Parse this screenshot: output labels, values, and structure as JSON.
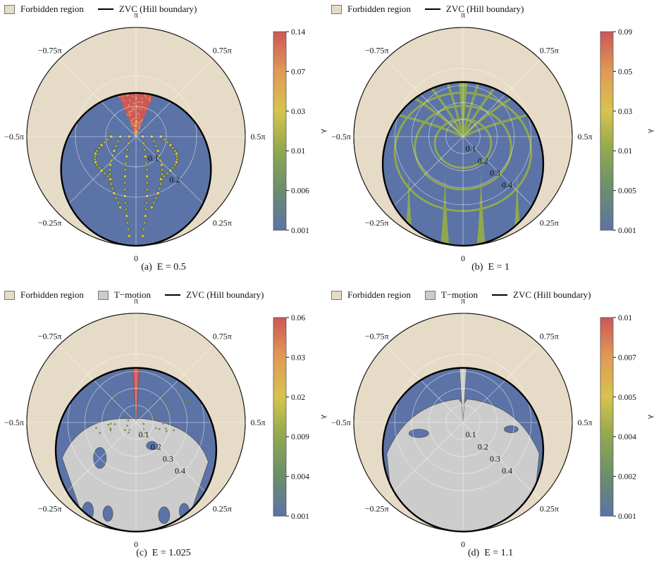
{
  "colors": {
    "forbidden": "#e6dbc6",
    "t_motion": "#cccccc",
    "zvc": "#000000",
    "field": "#5b73a6",
    "gradient": [
      "#5b73a6",
      "#6a8e6d",
      "#8fa84f",
      "#d6c44d",
      "#e09a57",
      "#cc5757"
    ]
  },
  "panels": [
    {
      "legend": [
        {
          "kind": "swatch",
          "color_key": "forbidden",
          "label": "Forbidden region"
        },
        {
          "kind": "line",
          "label": "ZVC (Hill boundary)"
        }
      ],
      "caption": {
        "prefix": "(a)",
        "eq": "E = 0.5"
      },
      "chart_data": {
        "type": "heatmap",
        "projection": "polar",
        "theta_ticks": [
          "π",
          "0.75π",
          "0.5π",
          "0.25π",
          "0",
          "−0.25π",
          "−0.5π",
          "−0.75π"
        ],
        "r_ticks": [
          "0.1",
          "0.2"
        ],
        "r_tick_values": [
          0.1,
          0.2
        ],
        "r_outer": 0.36,
        "zvc_scale": 0.7,
        "colorbar": {
          "label": "λ",
          "ticks": [
            "0.14",
            "0.07",
            "0.03",
            "0.01",
            "0.006",
            "0.001"
          ]
        },
        "has_t_motion": false
      }
    },
    {
      "legend": [
        {
          "kind": "swatch",
          "color_key": "forbidden",
          "label": "Forbidden region"
        },
        {
          "kind": "line",
          "label": "ZVC (Hill boundary)"
        }
      ],
      "caption": {
        "prefix": "(b)",
        "eq": "E = 1"
      },
      "chart_data": {
        "type": "heatmap",
        "projection": "polar",
        "theta_ticks": [
          "π",
          "0.75π",
          "0.5π",
          "0.25π",
          "0",
          "−0.25π",
          "−0.5π",
          "−0.75π"
        ],
        "r_ticks": [
          "0.1",
          "0.2",
          "0.3",
          "0.4"
        ],
        "r_tick_values": [
          0.1,
          0.2,
          0.3,
          0.4
        ],
        "r_outer": 0.64,
        "zvc_scale": 0.75,
        "colorbar": {
          "label": "λ",
          "ticks": [
            "0.09",
            "0.05",
            "0.03",
            "0.01",
            "0.005",
            "0.001"
          ]
        },
        "has_t_motion": false
      }
    },
    {
      "legend": [
        {
          "kind": "swatch",
          "color_key": "forbidden",
          "label": "Forbidden region"
        },
        {
          "kind": "swatch",
          "color_key": "t_motion",
          "label": "T−motion"
        },
        {
          "kind": "line",
          "label": "ZVC (Hill boundary)"
        }
      ],
      "caption": {
        "prefix": "(c)",
        "eq": "E = 1.025"
      },
      "chart_data": {
        "type": "heatmap",
        "projection": "polar",
        "theta_ticks": [
          "π",
          "0.75π",
          "0.5π",
          "0.25π",
          "0",
          "−0.25π",
          "−0.5π",
          "−0.75π"
        ],
        "r_ticks": [
          "0.1",
          "0.2",
          "0.3",
          "0.4"
        ],
        "r_tick_values": [
          0.1,
          0.2,
          0.3,
          0.4
        ],
        "r_outer": 0.64,
        "zvc_scale": 0.75,
        "colorbar": {
          "label": "λ",
          "ticks": [
            "0.06",
            "0.03",
            "0.02",
            "0.009",
            "0.004",
            "0.001"
          ]
        },
        "has_t_motion": true
      }
    },
    {
      "legend": [
        {
          "kind": "swatch",
          "color_key": "forbidden",
          "label": "Forbidden region"
        },
        {
          "kind": "swatch",
          "color_key": "t_motion",
          "label": "T−motion"
        },
        {
          "kind": "line",
          "label": "ZVC (Hill boundary)"
        }
      ],
      "caption": {
        "prefix": "(d)",
        "eq": "E = 1.1"
      },
      "chart_data": {
        "type": "heatmap",
        "projection": "polar",
        "theta_ticks": [
          "π",
          "0.75π",
          "0.5π",
          "0.25π",
          "0",
          "−0.25π",
          "−0.5π",
          "−0.75π"
        ],
        "r_ticks": [
          "0.1",
          "0.2",
          "0.3",
          "0.4"
        ],
        "r_tick_values": [
          0.1,
          0.2,
          0.3,
          0.4
        ],
        "r_outer": 0.64,
        "zvc_scale": 0.75,
        "colorbar": {
          "label": "λ",
          "ticks": [
            "0.01",
            "0.007",
            "0.005",
            "0.004",
            "0.002",
            "0.001"
          ]
        },
        "has_t_motion": true
      }
    }
  ]
}
